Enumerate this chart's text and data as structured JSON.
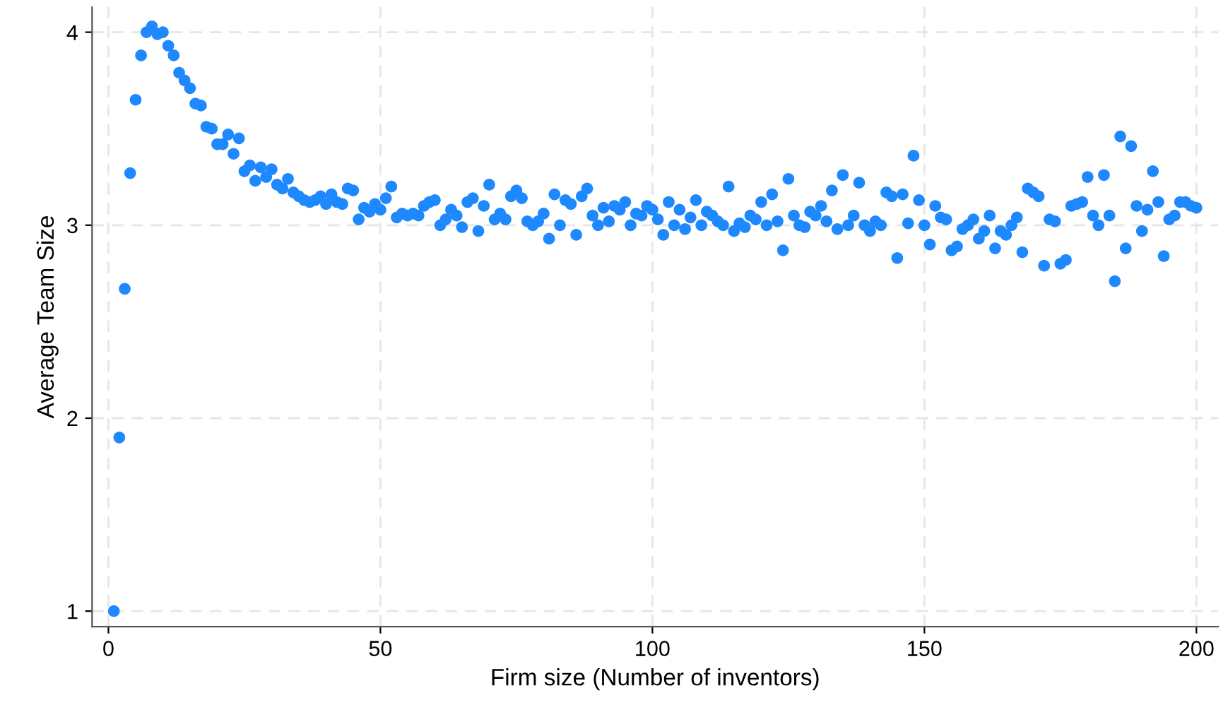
{
  "chart_data": {
    "type": "scatter",
    "xlabel": "Firm size (Number of inventors)",
    "ylabel": "Average Team Size",
    "xlim": [
      -3,
      204
    ],
    "ylim": [
      0.92,
      4.13
    ],
    "xticks": [
      0,
      50,
      100,
      150,
      200
    ],
    "yticks": [
      1,
      2,
      3,
      4
    ],
    "grid": true,
    "marker": "circle",
    "series": [
      {
        "color": "#1e88ff",
        "x": [
          1,
          2,
          3,
          4,
          5,
          6,
          7,
          8,
          9,
          10,
          11,
          12,
          13,
          14,
          15,
          16,
          17,
          18,
          19,
          20,
          21,
          22,
          23,
          24,
          25,
          26,
          27,
          28,
          29,
          30,
          31,
          32,
          33,
          34,
          35,
          36,
          37,
          38,
          39,
          40,
          41,
          42,
          43,
          44,
          45,
          46,
          47,
          48,
          49,
          50,
          51,
          52,
          53,
          54,
          55,
          56,
          57,
          58,
          59,
          60,
          61,
          62,
          63,
          64,
          65,
          66,
          67,
          68,
          69,
          70,
          71,
          72,
          73,
          74,
          75,
          76,
          77,
          78,
          79,
          80,
          81,
          82,
          83,
          84,
          85,
          86,
          87,
          88,
          89,
          90,
          91,
          92,
          93,
          94,
          95,
          96,
          97,
          98,
          99,
          100,
          101,
          102,
          103,
          104,
          105,
          106,
          107,
          108,
          109,
          110,
          111,
          112,
          113,
          114,
          115,
          116,
          117,
          118,
          119,
          120,
          121,
          122,
          123,
          124,
          125,
          126,
          127,
          128,
          129,
          130,
          131,
          132,
          133,
          134,
          135,
          136,
          137,
          138,
          139,
          140,
          141,
          142,
          143,
          144,
          145,
          146,
          147,
          148,
          149,
          150,
          151,
          152,
          153,
          154,
          155,
          156,
          157,
          158,
          159,
          160,
          161,
          162,
          163,
          164,
          165,
          166,
          167,
          168,
          169,
          170,
          171,
          172,
          173,
          174,
          175,
          176,
          177,
          178,
          179,
          180,
          181,
          182,
          183,
          184,
          185,
          186,
          187,
          188,
          189,
          190,
          191,
          192,
          193,
          194,
          195,
          196,
          197,
          198,
          199,
          200
        ],
        "values": [
          1.0,
          1.9,
          2.67,
          3.27,
          3.65,
          3.88,
          4.0,
          4.03,
          3.99,
          4.0,
          3.93,
          3.88,
          3.79,
          3.75,
          3.71,
          3.63,
          3.62,
          3.51,
          3.5,
          3.42,
          3.42,
          3.47,
          3.37,
          3.45,
          3.28,
          3.31,
          3.23,
          3.3,
          3.25,
          3.29,
          3.21,
          3.19,
          3.24,
          3.17,
          3.15,
          3.13,
          3.12,
          3.13,
          3.15,
          3.11,
          3.16,
          3.12,
          3.11,
          3.19,
          3.18,
          3.03,
          3.09,
          3.07,
          3.11,
          3.08,
          3.14,
          3.2,
          3.04,
          3.06,
          3.05,
          3.06,
          3.05,
          3.1,
          3.12,
          3.13,
          3.0,
          3.03,
          3.08,
          3.05,
          2.99,
          3.12,
          3.14,
          2.97,
          3.1,
          3.21,
          3.03,
          3.06,
          3.03,
          3.15,
          3.18,
          3.14,
          3.02,
          3.0,
          3.02,
          3.06,
          2.93,
          3.16,
          3.0,
          3.13,
          3.11,
          2.95,
          3.15,
          3.19,
          3.05,
          3.0,
          3.09,
          3.02,
          3.1,
          3.08,
          3.12,
          3.0,
          3.06,
          3.05,
          3.1,
          3.08,
          3.03,
          2.95,
          3.12,
          3.0,
          3.08,
          2.98,
          3.04,
          3.13,
          3.0,
          3.07,
          3.05,
          3.02,
          3.0,
          3.2,
          2.97,
          3.01,
          2.99,
          3.05,
          3.03,
          3.12,
          3.0,
          3.16,
          3.02,
          2.87,
          3.24,
          3.05,
          3.0,
          2.99,
          3.07,
          3.05,
          3.1,
          3.02,
          3.18,
          2.98,
          3.26,
          3.0,
          3.05,
          3.22,
          3.0,
          2.97,
          3.02,
          3.0,
          3.17,
          3.15,
          2.83,
          3.16,
          3.01,
          3.36,
          3.13,
          3.0,
          2.9,
          3.1,
          3.04,
          3.03,
          2.87,
          2.89,
          2.98,
          3.0,
          3.03,
          2.93,
          2.97,
          3.05,
          2.88,
          2.97,
          2.95,
          3.0,
          3.04,
          2.86,
          3.19,
          3.17,
          3.15,
          2.79,
          3.03,
          3.02,
          2.8,
          2.82,
          3.1,
          3.11,
          3.12,
          3.25,
          3.05,
          3.0,
          3.26,
          3.05,
          2.71,
          3.46,
          2.88,
          3.41,
          3.1,
          2.97,
          3.08,
          3.28,
          3.12,
          2.84,
          3.03,
          3.05,
          3.12,
          3.12,
          3.1,
          3.09
        ]
      }
    ]
  }
}
